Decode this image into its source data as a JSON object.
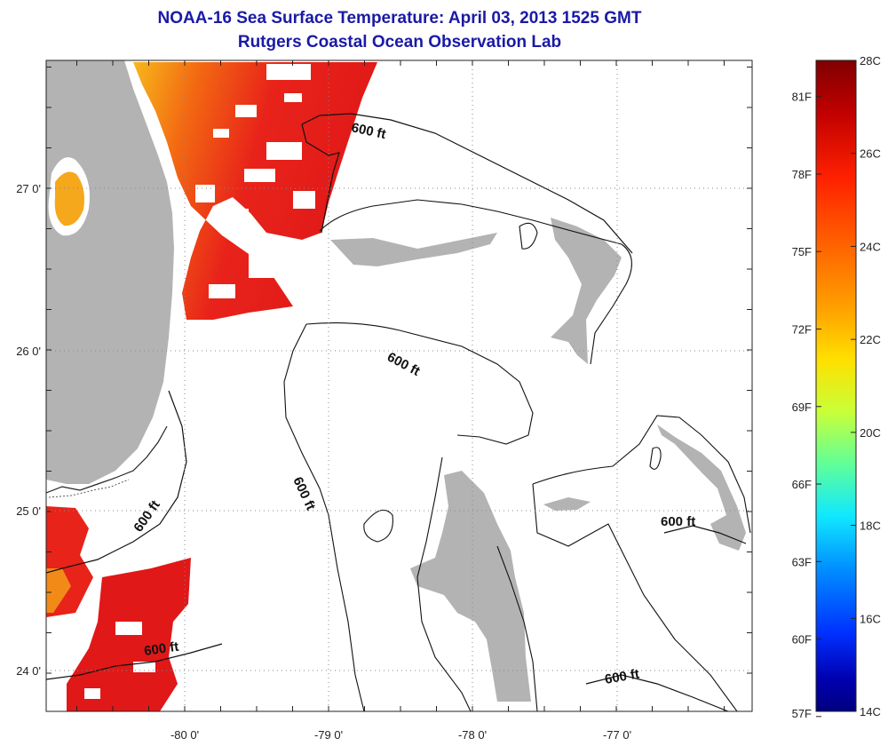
{
  "header": {
    "title": "NOAA-16 Sea Surface Temperature:  April 03, 2013 1525 GMT",
    "subtitle": "Rutgers Coastal Ocean Observation Lab"
  },
  "map": {
    "lon_ticks": [
      "-80 0'",
      "-79 0'",
      "-78 0'",
      "-77 0'"
    ],
    "lat_ticks": [
      "27 0'",
      "26 0'",
      "25 0'",
      "24 0'"
    ],
    "contour_label": "600 ft",
    "colors": {
      "land": "#b3b3b3",
      "cloud": "#ffffff",
      "sst_warm": "#e8231a",
      "sst_mid": "#f36a12",
      "sst_cool": "#f7b21a"
    }
  },
  "colorbar": {
    "celsius": [
      "28C",
      "26C",
      "24C",
      "22C",
      "20C",
      "18C",
      "16C",
      "14C"
    ],
    "fahrenheit": [
      "81F",
      "78F",
      "75F",
      "72F",
      "69F",
      "66F",
      "63F",
      "60F",
      "57F"
    ],
    "stops": [
      "#800000",
      "#c00000",
      "#ff2000",
      "#ff6000",
      "#ffa000",
      "#ffe000",
      "#c8ff38",
      "#60ff98",
      "#10e8ff",
      "#0090ff",
      "#0030ff",
      "#0000b0",
      "#000080"
    ]
  }
}
